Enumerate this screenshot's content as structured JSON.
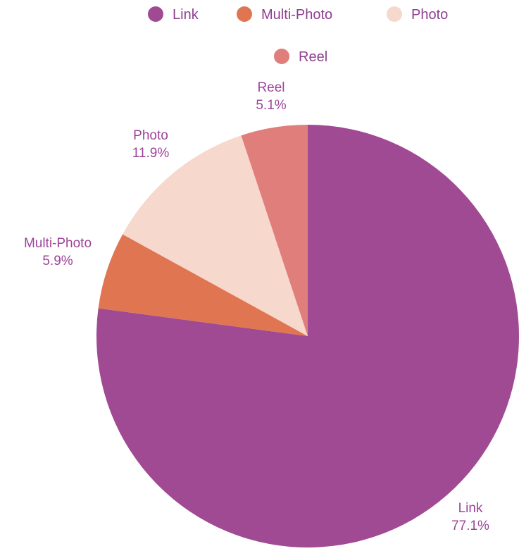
{
  "chart_data": {
    "type": "pie",
    "title": "",
    "legend_position": "top",
    "slices": [
      {
        "label": "Link",
        "value": 77.1,
        "value_label": "77.1%",
        "color": "#a04a94"
      },
      {
        "label": "Multi-Photo",
        "value": 5.9,
        "value_label": "5.9%",
        "color": "#e07552"
      },
      {
        "label": "Photo",
        "value": 11.9,
        "value_label": "11.9%",
        "color": "#f6d8cc"
      },
      {
        "label": "Reel",
        "value": 5.1,
        "value_label": "5.1%",
        "color": "#e07e7b"
      }
    ]
  }
}
